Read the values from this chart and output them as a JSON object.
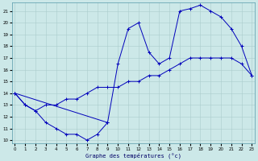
{
  "xlabel": "Graphe des températures (°c)",
  "background_color": "#cce8e8",
  "grid_color": "#aacccc",
  "line_color": "#0000bb",
  "yticks": [
    10,
    11,
    12,
    13,
    14,
    15,
    16,
    17,
    18,
    19,
    20,
    21
  ],
  "xticks": [
    0,
    1,
    2,
    3,
    4,
    5,
    6,
    7,
    8,
    9,
    10,
    11,
    12,
    13,
    14,
    15,
    16,
    17,
    18,
    19,
    20,
    21,
    22,
    23
  ],
  "xlim": [
    -0.3,
    23.3
  ],
  "ylim": [
    9.7,
    21.7
  ],
  "curve_bottom_x": [
    0,
    1,
    2,
    3,
    4,
    5,
    6,
    7,
    8,
    9
  ],
  "curve_bottom_y": [
    14.0,
    13.0,
    12.5,
    11.5,
    11.0,
    10.5,
    10.5,
    10.0,
    10.5,
    11.5
  ],
  "curve_mid_x": [
    0,
    1,
    2,
    3,
    4,
    5,
    6,
    7,
    8,
    9,
    10,
    11,
    12,
    13,
    14,
    15,
    16,
    17,
    18,
    19,
    20,
    21,
    22,
    23
  ],
  "curve_mid_y": [
    14.0,
    13.0,
    12.5,
    13.0,
    13.0,
    13.5,
    13.5,
    14.0,
    14.5,
    14.5,
    14.5,
    15.0,
    15.0,
    15.5,
    15.5,
    16.0,
    16.5,
    17.0,
    17.0,
    17.0,
    17.0,
    17.0,
    16.5,
    15.5
  ],
  "curve_top_x": [
    0,
    9,
    10,
    11,
    12,
    13,
    14,
    15,
    16,
    17,
    18,
    19,
    20,
    21,
    22,
    23
  ],
  "curve_top_y": [
    14.0,
    11.5,
    16.5,
    19.5,
    20.0,
    17.5,
    16.5,
    17.0,
    21.0,
    21.2,
    21.5,
    21.0,
    20.5,
    19.5,
    18.0,
    15.5
  ]
}
